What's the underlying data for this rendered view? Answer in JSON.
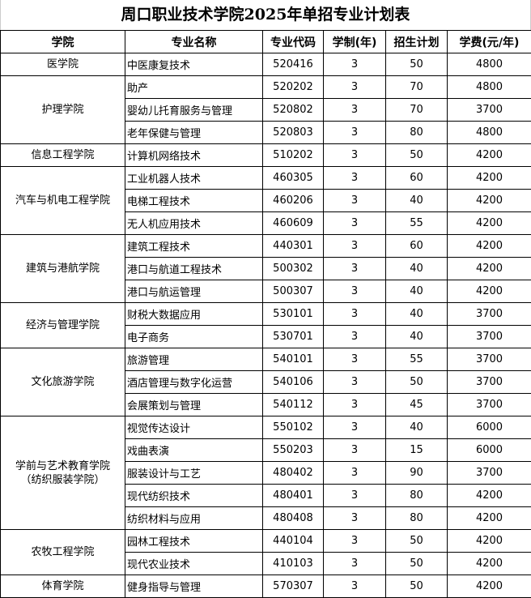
{
  "title": "周口职业技术学院2025年单招专业计划表",
  "headers": [
    "学院",
    "专业名称",
    "专业代码",
    "学制(年)",
    "招生计划",
    "学费(元/年)"
  ],
  "colleges": [
    {
      "name": "医学院",
      "majors": [
        [
          "中医康复技术",
          "520416",
          "3",
          "50",
          "4800"
        ]
      ]
    },
    {
      "name": "护理学院",
      "majors": [
        [
          "助产",
          "520202",
          "3",
          "70",
          "4800"
        ],
        [
          "婴幼儿托育服务与管理",
          "520802",
          "3",
          "70",
          "3700"
        ],
        [
          "老年保健与管理",
          "520803",
          "3",
          "80",
          "4800"
        ]
      ]
    },
    {
      "name": "信息工程学院",
      "majors": [
        [
          "计算机网络技术",
          "510202",
          "3",
          "50",
          "4200"
        ]
      ]
    },
    {
      "name": "汽车与机电工程学院",
      "majors": [
        [
          "工业机器人技术",
          "460305",
          "3",
          "60",
          "4200"
        ],
        [
          "电梯工程技术",
          "460206",
          "3",
          "40",
          "4200"
        ],
        [
          "无人机应用技术",
          "460609",
          "3",
          "55",
          "4200"
        ]
      ]
    },
    {
      "name": "建筑与港航学院",
      "majors": [
        [
          "建筑工程技术",
          "440301",
          "3",
          "60",
          "4200"
        ],
        [
          "港口与航道工程技术",
          "500302",
          "3",
          "40",
          "4200"
        ],
        [
          "港口与航运管理",
          "500307",
          "3",
          "40",
          "4200"
        ]
      ]
    },
    {
      "name": "经济与管理学院",
      "majors": [
        [
          "财税大数据应用",
          "530101",
          "3",
          "40",
          "3700"
        ],
        [
          "电子商务",
          "530701",
          "3",
          "40",
          "3700"
        ]
      ]
    },
    {
      "name": "文化旅游学院",
      "majors": [
        [
          "旅游管理",
          "540101",
          "3",
          "55",
          "3700"
        ],
        [
          "酒店管理与数字化运营",
          "540106",
          "3",
          "50",
          "3700"
        ],
        [
          "会展策划与管理",
          "540112",
          "3",
          "45",
          "3700"
        ]
      ]
    },
    {
      "name": "学前与艺术教育学院\n（纺织服装学院）",
      "majors": [
        [
          "视觉传达设计",
          "550102",
          "3",
          "40",
          "6000"
        ],
        [
          "戏曲表演",
          "550203",
          "3",
          "15",
          "6000"
        ],
        [
          "服装设计与工艺",
          "480402",
          "3",
          "90",
          "3700"
        ],
        [
          "现代纺织技术",
          "480401",
          "3",
          "80",
          "4200"
        ],
        [
          "纺织材料与应用",
          "480408",
          "3",
          "80",
          "4200"
        ]
      ]
    },
    {
      "name": "农牧工程学院",
      "majors": [
        [
          "园林工程技术",
          "440104",
          "3",
          "50",
          "4200"
        ],
        [
          "现代农业技术",
          "410103",
          "3",
          "50",
          "4200"
        ]
      ]
    },
    {
      "name": "体育学院",
      "majors": [
        [
          "健身指导与管理",
          "570307",
          "3",
          "50",
          "4200"
        ]
      ]
    }
  ]
}
